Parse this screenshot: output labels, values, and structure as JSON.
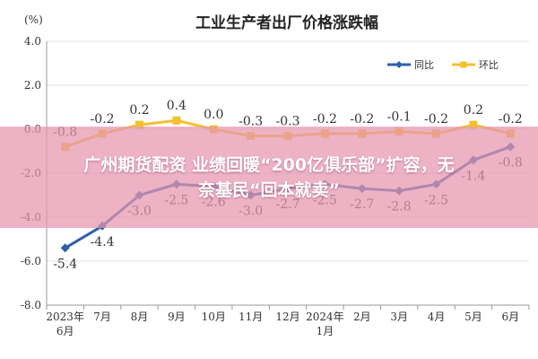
{
  "chart_data": {
    "type": "line",
    "title": "工业生产者出厂价格涨跌幅",
    "unit": "(%)",
    "ylim": [
      -8.0,
      4.0
    ],
    "yticks": [
      {
        "value": 4.0,
        "label": "4.0"
      },
      {
        "value": 2.0,
        "label": "2.0"
      },
      {
        "value": 0.0,
        "label": "0.0"
      },
      {
        "value": -2.0,
        "label": "-2.0"
      },
      {
        "value": -4.0,
        "label": "-4.0"
      },
      {
        "value": -6.0,
        "label": "-6.0"
      },
      {
        "value": -8.0,
        "label": "-8.0"
      }
    ],
    "categories": [
      [
        "2023年",
        "6月"
      ],
      [
        "7月"
      ],
      [
        "8月"
      ],
      [
        "9月"
      ],
      [
        "10月"
      ],
      [
        "11月"
      ],
      [
        "12月"
      ],
      [
        "2024年",
        "1月"
      ],
      [
        "2月"
      ],
      [
        "3月"
      ],
      [
        "4月"
      ],
      [
        "5月"
      ],
      [
        "6月"
      ]
    ],
    "series": [
      {
        "name": "同比",
        "color": "#2f5fa8",
        "values": [
          -5.4,
          -4.4,
          -3.0,
          -2.5,
          -2.6,
          -3.0,
          -2.7,
          -2.5,
          -2.7,
          -2.8,
          -2.5,
          -1.4,
          -0.8
        ],
        "labels": [
          "-5.4",
          "-4.4",
          "-3.0",
          "-2.5",
          "-2.6",
          "-3.0",
          "-2.7",
          "-2.5",
          "-2.7",
          "-2.8",
          "-2.5",
          "-1.4",
          "-0.8"
        ]
      },
      {
        "name": "环比",
        "color": "#f2c12e",
        "values": [
          -0.8,
          -0.2,
          0.2,
          0.4,
          0.0,
          -0.3,
          -0.3,
          -0.2,
          -0.2,
          -0.1,
          -0.2,
          0.2,
          -0.2
        ],
        "labels": [
          "-0.8",
          "-0.2",
          "0.2",
          "0.4",
          "0.0",
          "-0.3",
          "-0.3",
          "-0.2",
          "-0.2",
          "-0.1",
          "-0.2",
          "0.2",
          "-0.2"
        ]
      }
    ],
    "grid": true,
    "legend": "top-right"
  },
  "banner": {
    "line1": "广州期货配资 业绩回暖“200亿俱乐部”扩容，无",
    "line2": "奈基民“回本就卖”"
  }
}
